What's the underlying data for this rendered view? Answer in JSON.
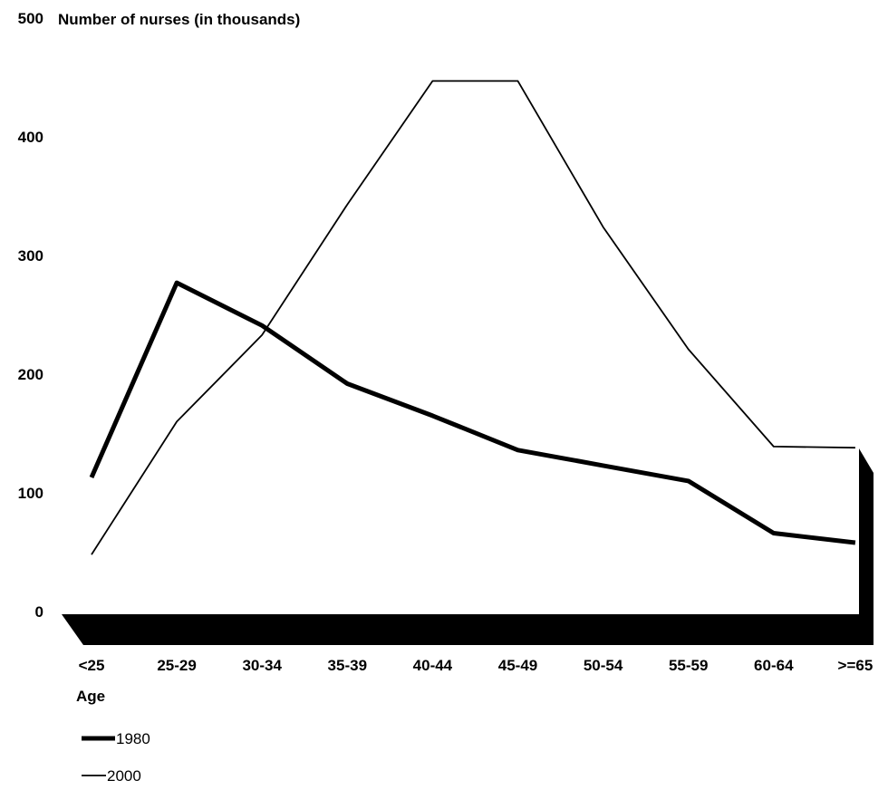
{
  "chart_data": {
    "type": "line",
    "ylabel": "Number of nurses (in thousands)",
    "xlabel": "Age",
    "categories": [
      "<25",
      "25-29",
      "30-34",
      "35-39",
      "40-44",
      "45-49",
      "50-54",
      "55-59",
      "60-64",
      ">=65"
    ],
    "y_ticks": [
      "0",
      "100",
      "200",
      "300",
      "400",
      "500"
    ],
    "ylim": [
      0,
      500
    ],
    "grid": false,
    "legend_position": "bottom-left",
    "series": [
      {
        "name": "1980",
        "style": "thick",
        "color": "#000000",
        "values": [
          113,
          277,
          241,
          192,
          165,
          136,
          123,
          110,
          66,
          58
        ]
      },
      {
        "name": "2000",
        "style": "thin",
        "color": "#000000",
        "values": [
          48,
          160,
          233,
          343,
          447,
          447,
          324,
          221,
          139,
          138
        ]
      }
    ]
  }
}
